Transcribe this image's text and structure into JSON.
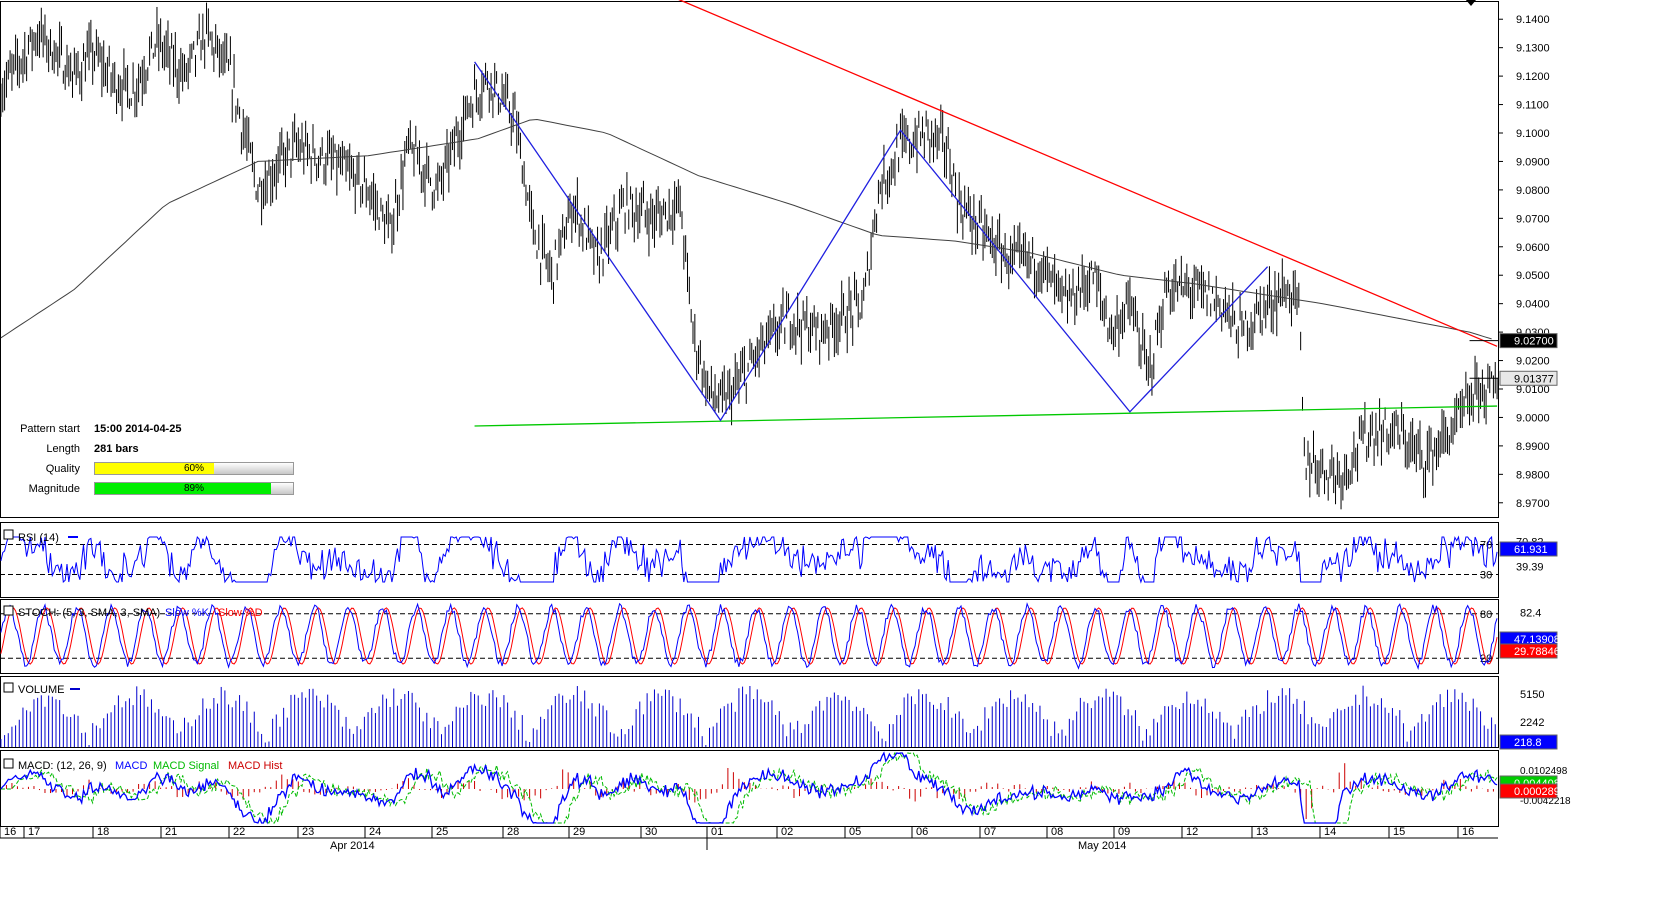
{
  "colors": {
    "candle": "#000000",
    "sma": "#404040",
    "resistance": "#ff0000",
    "support": "#00c800",
    "zigzag": "#2020e0",
    "rsi": "#0000ff",
    "stoch_k": "#0000ff",
    "stoch_d": "#ff0000",
    "volume": "#0000cc",
    "macd": "#0000ff",
    "macd_signal": "#00bb00",
    "macd_hist": "#cc0000",
    "quality_fill": "#ffff00",
    "magnitude_fill": "#00ee00"
  },
  "pattern_info": {
    "pattern_start_label": "Pattern start",
    "pattern_start_value": "15:00 2014-04-25",
    "length_label": "Length",
    "length_value": "281 bars",
    "quality_label": "Quality",
    "quality_pct": 60,
    "quality_text": "60%",
    "magnitude_label": "Magnitude",
    "magnitude_pct": 89,
    "magnitude_text": "89%"
  },
  "chart_data": {
    "type": "candlestick",
    "main": {
      "ylim": [
        8.965,
        9.145
      ],
      "y_ticks": [
        "9.1400",
        "9.1300",
        "9.1200",
        "9.1100",
        "9.1000",
        "9.0900",
        "9.0800",
        "9.0700",
        "9.0600",
        "9.0500",
        "9.0400",
        "9.0300",
        "9.0200",
        "9.0100",
        "9.0000",
        "8.9900",
        "8.9800",
        "8.9700"
      ],
      "price_anchor": [
        [
          0,
          9.115
        ],
        [
          10,
          9.125
        ],
        [
          20,
          9.135
        ],
        [
          30,
          9.128
        ],
        [
          40,
          9.12
        ],
        [
          50,
          9.128
        ],
        [
          62,
          9.118
        ],
        [
          72,
          9.115
        ],
        [
          85,
          9.132
        ],
        [
          100,
          9.12
        ],
        [
          112,
          9.135
        ],
        [
          125,
          9.12
        ],
        [
          140,
          9.08
        ],
        [
          160,
          9.095
        ],
        [
          180,
          9.09
        ],
        [
          200,
          9.08
        ],
        [
          212,
          9.065
        ],
        [
          222,
          9.095
        ],
        [
          238,
          9.08
        ],
        [
          255,
          9.11
        ],
        [
          265,
          9.12
        ],
        [
          280,
          9.105
        ],
        [
          290,
          9.065
        ],
        [
          300,
          9.05
        ],
        [
          312,
          9.075
        ],
        [
          325,
          9.055
        ],
        [
          340,
          9.075
        ],
        [
          355,
          9.07
        ],
        [
          370,
          9.075
        ],
        [
          377,
          9.03
        ],
        [
          385,
          9.01
        ],
        [
          392,
          9.005
        ],
        [
          400,
          9.01
        ],
        [
          415,
          9.025
        ],
        [
          430,
          9.035
        ],
        [
          445,
          9.03
        ],
        [
          458,
          9.035
        ],
        [
          470,
          9.04
        ],
        [
          478,
          9.08
        ],
        [
          490,
          9.095
        ],
        [
          505,
          9.1
        ],
        [
          515,
          9.095
        ],
        [
          522,
          9.075
        ],
        [
          535,
          9.065
        ],
        [
          550,
          9.055
        ],
        [
          565,
          9.055
        ],
        [
          580,
          9.04
        ],
        [
          595,
          9.05
        ],
        [
          605,
          9.03
        ],
        [
          615,
          9.04
        ],
        [
          625,
          9.015
        ],
        [
          635,
          9.045
        ],
        [
          650,
          9.045
        ],
        [
          665,
          9.04
        ],
        [
          675,
          9.03
        ],
        [
          690,
          9.04
        ],
        [
          700,
          9.045
        ],
        [
          707,
          9.04
        ],
        [
          710,
          8.985
        ],
        [
          730,
          8.98
        ],
        [
          745,
          8.995
        ],
        [
          760,
          8.995
        ],
        [
          775,
          8.985
        ],
        [
          790,
          8.995
        ],
        [
          805,
          9.01
        ],
        [
          815,
          9.01
        ]
      ],
      "sma_anchor": [
        [
          0,
          9.028
        ],
        [
          40,
          9.045
        ],
        [
          90,
          9.075
        ],
        [
          140,
          9.09
        ],
        [
          200,
          9.092
        ],
        [
          260,
          9.098
        ],
        [
          290,
          9.105
        ],
        [
          330,
          9.1
        ],
        [
          380,
          9.085
        ],
        [
          430,
          9.075
        ],
        [
          478,
          9.064
        ],
        [
          520,
          9.062
        ],
        [
          560,
          9.058
        ],
        [
          610,
          9.05
        ],
        [
          650,
          9.047
        ],
        [
          690,
          9.043
        ],
        [
          720,
          9.04
        ],
        [
          760,
          9.035
        ],
        [
          800,
          9.03
        ],
        [
          815,
          9.027
        ]
      ],
      "resistance_line": [
        [
          0,
          9.165
        ],
        [
          815,
          9.025
        ]
      ],
      "support_line": [
        [
          258,
          8.997
        ],
        [
          815,
          9.004
        ]
      ],
      "zigzag": [
        [
          258,
          9.125
        ],
        [
          392,
          8.999
        ],
        [
          490,
          9.101
        ],
        [
          615,
          9.002
        ],
        [
          690,
          9.053
        ]
      ],
      "last_price_1": "9.02700",
      "last_price_2": "9.01377"
    },
    "rsi": {
      "label": "RSI (14)",
      "levels": [
        "70",
        "30"
      ],
      "values_right": [
        "70.82",
        "39.39"
      ],
      "last": "61.931"
    },
    "stoch": {
      "label": "STOCH: (5, 3, SMA, 3, SMA)",
      "k_label": "Slow %K",
      "d_label": "Slow %D",
      "levels": [
        "80",
        "20"
      ],
      "tick": "82.4",
      "last_k": "47.13908",
      "last_d": "29.78846"
    },
    "volume": {
      "label": "VOLUME",
      "ticks": [
        "5150",
        "2242"
      ],
      "last": "218.8"
    },
    "macd": {
      "label": "MACD: (12, 26, 9)",
      "macd_label": "MACD",
      "signal_label": "MACD Signal",
      "hist_label": "MACD Hist",
      "ticks": [
        "0.0102498",
        "-0.0042218"
      ],
      "last_macd": "0.0044086",
      "last_hist": "0.0002896"
    },
    "x_axis": {
      "days": [
        "16",
        "17",
        "18",
        "21",
        "22",
        "23",
        "24",
        "25",
        "28",
        "29",
        "30",
        "01",
        "02",
        "05",
        "06",
        "07",
        "08",
        "09",
        "12",
        "13",
        "14",
        "15",
        "16"
      ],
      "months": [
        "Apr 2014",
        "May 2014"
      ]
    }
  }
}
